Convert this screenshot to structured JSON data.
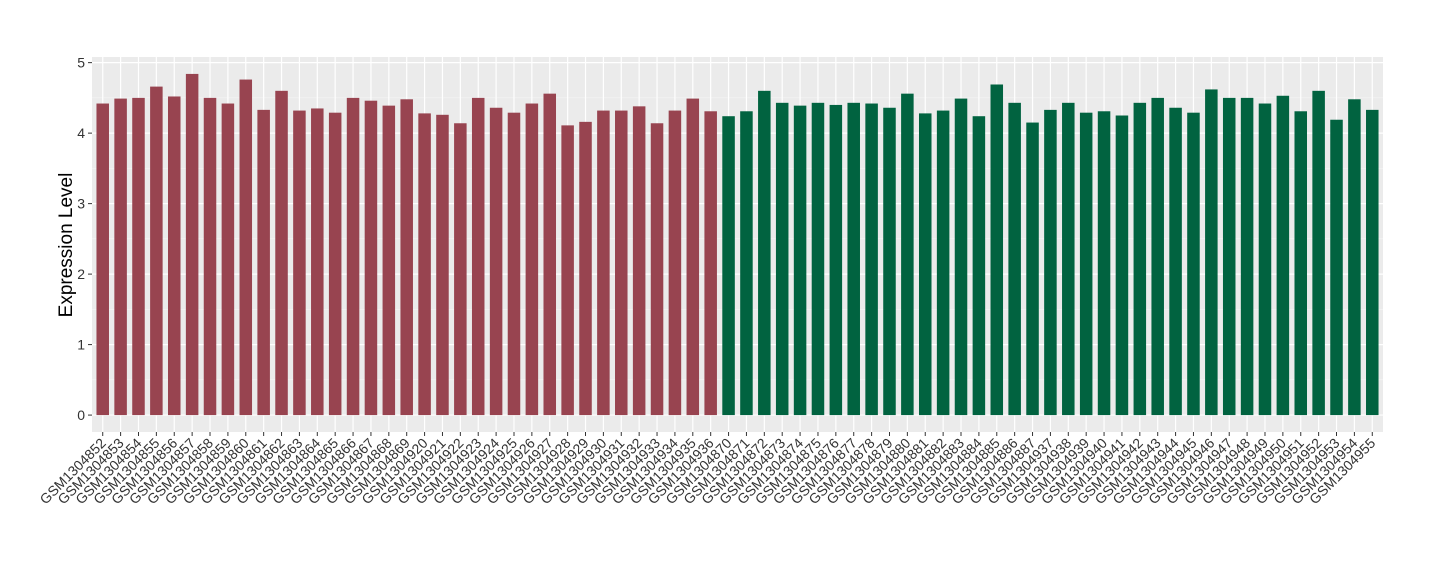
{
  "chart_data": {
    "type": "bar",
    "y_label": "Expression Level",
    "categories": [
      "GSM1304852",
      "GSM1304853",
      "GSM1304854",
      "GSM1304855",
      "GSM1304856",
      "GSM1304857",
      "GSM1304858",
      "GSM1304859",
      "GSM1304860",
      "GSM1304861",
      "GSM1304862",
      "GSM1304863",
      "GSM1304864",
      "GSM1304865",
      "GSM1304866",
      "GSM1304867",
      "GSM1304868",
      "GSM1304869",
      "GSM1304920",
      "GSM1304921",
      "GSM1304922",
      "GSM1304923",
      "GSM1304924",
      "GSM1304925",
      "GSM1304926",
      "GSM1304927",
      "GSM1304928",
      "GSM1304929",
      "GSM1304930",
      "GSM1304931",
      "GSM1304932",
      "GSM1304933",
      "GSM1304934",
      "GSM1304935",
      "GSM1304936",
      "GSM1304870",
      "GSM1304871",
      "GSM1304872",
      "GSM1304873",
      "GSM1304874",
      "GSM1304875",
      "GSM1304876",
      "GSM1304877",
      "GSM1304878",
      "GSM1304879",
      "GSM1304880",
      "GSM1304881",
      "GSM1304882",
      "GSM1304883",
      "GSM1304884",
      "GSM1304885",
      "GSM1304886",
      "GSM1304887",
      "GSM1304937",
      "GSM1304938",
      "GSM1304939",
      "GSM1304940",
      "GSM1304941",
      "GSM1304942",
      "GSM1304943",
      "GSM1304944",
      "GSM1304945",
      "GSM1304946",
      "GSM1304947",
      "GSM1304948",
      "GSM1304949",
      "GSM1304950",
      "GSM1304951",
      "GSM1304952",
      "GSM1304953",
      "GSM1304954",
      "GSM1304955"
    ],
    "values": [
      4.42,
      4.49,
      4.5,
      4.66,
      4.52,
      4.84,
      4.5,
      4.42,
      4.76,
      4.33,
      4.6,
      4.32,
      4.35,
      4.29,
      4.5,
      4.46,
      4.39,
      4.48,
      4.28,
      4.26,
      4.14,
      4.5,
      4.36,
      4.29,
      4.42,
      4.56,
      4.11,
      4.16,
      4.32,
      4.32,
      4.38,
      4.14,
      4.32,
      4.49,
      4.31,
      4.24,
      4.31,
      4.6,
      4.43,
      4.39,
      4.43,
      4.4,
      4.43,
      4.42,
      4.36,
      4.56,
      4.28,
      4.32,
      4.49,
      4.24,
      4.69,
      4.43,
      4.15,
      4.33,
      4.43,
      4.29,
      4.31,
      4.25,
      4.43,
      4.5,
      4.36,
      4.29,
      4.62,
      4.5,
      4.5,
      4.42,
      4.53,
      4.31,
      4.6,
      4.19,
      4.48,
      4.33
    ],
    "colors": [
      "#984450",
      "#984450",
      "#984450",
      "#984450",
      "#984450",
      "#984450",
      "#984450",
      "#984450",
      "#984450",
      "#984450",
      "#984450",
      "#984450",
      "#984450",
      "#984450",
      "#984450",
      "#984450",
      "#984450",
      "#984450",
      "#984450",
      "#984450",
      "#984450",
      "#984450",
      "#984450",
      "#984450",
      "#984450",
      "#984450",
      "#984450",
      "#984450",
      "#984450",
      "#984450",
      "#984450",
      "#984450",
      "#984450",
      "#984450",
      "#984450",
      "#016340",
      "#016340",
      "#016340",
      "#016340",
      "#016340",
      "#016340",
      "#016340",
      "#016340",
      "#016340",
      "#016340",
      "#016340",
      "#016340",
      "#016340",
      "#016340",
      "#016340",
      "#016340",
      "#016340",
      "#016340",
      "#016340",
      "#016340",
      "#016340",
      "#016340",
      "#016340",
      "#016340",
      "#016340",
      "#016340",
      "#016340",
      "#016340",
      "#016340",
      "#016340",
      "#016340",
      "#016340",
      "#016340",
      "#016340",
      "#016340",
      "#016340",
      "#016340"
    ],
    "ylim": [
      -0.24,
      5.08
    ],
    "yticks": [
      0,
      1,
      2,
      3,
      4,
      5
    ],
    "grid": true
  }
}
